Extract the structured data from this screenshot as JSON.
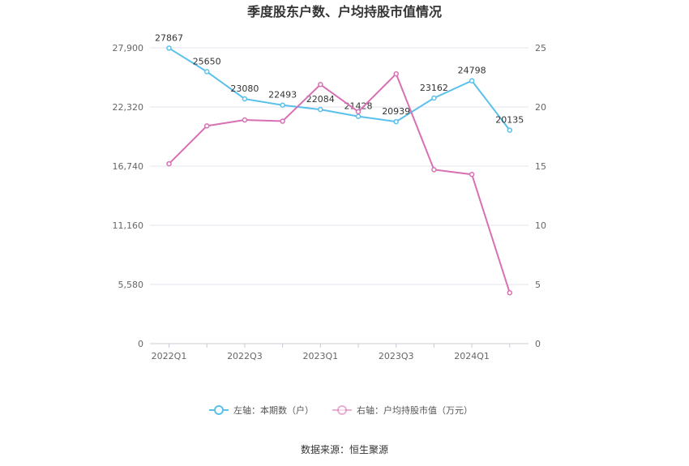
{
  "chart_data": {
    "type": "line",
    "title": "季度股东户数、户均持股市值情况",
    "source": "数据来源：恒生聚源",
    "x_tick_labels": [
      "2022Q1",
      "2022Q3",
      "2023Q1",
      "2023Q3",
      "2024Q1"
    ],
    "x_tick_index": [
      0,
      2,
      4,
      6,
      8
    ],
    "left_axis": {
      "ylim": [
        0,
        27900
      ],
      "ticks": [
        "0",
        "5,580",
        "11,160",
        "16,740",
        "22,320",
        "27,900"
      ],
      "tick_values": [
        0,
        5580,
        11160,
        16740,
        22320,
        27900
      ]
    },
    "right_axis": {
      "ylim": [
        0,
        25
      ],
      "ticks": [
        "0",
        "5",
        "10",
        "15",
        "20",
        "25"
      ],
      "tick_values": [
        0,
        5,
        10,
        15,
        20,
        25
      ]
    },
    "grid": true,
    "legend_position": "bottom",
    "series": [
      {
        "name": "左轴：本期数（户）",
        "axis": "left",
        "color": "#5bc0eb",
        "values": [
          27867,
          25650,
          23080,
          22493,
          22084,
          21428,
          20939,
          23162,
          24798,
          20135
        ],
        "labels": [
          "27867",
          "25650",
          "23080",
          "22493",
          "22084",
          "21428",
          "20939",
          "23162",
          "24798",
          "20135"
        ]
      },
      {
        "name": "右轴：户均持股市值（万元）",
        "axis": "right",
        "color": "#d870b4",
        "values": [
          15.2,
          18.4,
          18.9,
          18.8,
          21.9,
          19.6,
          22.8,
          14.7,
          14.3,
          4.3
        ]
      }
    ]
  }
}
